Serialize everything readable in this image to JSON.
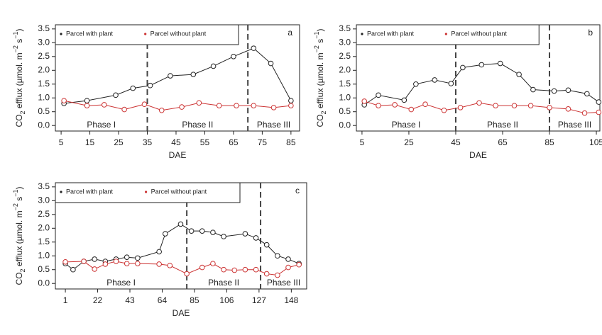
{
  "chart_data": [
    {
      "type": "line",
      "panel": "a",
      "x_label": "DAE",
      "y_label_parts": [
        "CO",
        "2",
        " efflux (µmol. m",
        "−2",
        " s",
        "−1",
        ")"
      ],
      "xlim": [
        3,
        88
      ],
      "xticks": [
        5,
        15,
        25,
        35,
        45,
        55,
        65,
        75,
        85
      ],
      "ylim": [
        -0.2,
        3.65
      ],
      "yticks": [
        {
          "value": 0,
          "label": "0.0"
        },
        0.5,
        {
          "value": 1,
          "label": "1.0"
        },
        1.5,
        {
          "value": 2,
          "label": "2.0"
        },
        2.5,
        {
          "value": 3,
          "label": "3.0"
        },
        3.5
      ],
      "dividers": [
        35,
        70
      ],
      "phases": [
        "Phase I",
        "Phase II",
        "Phase III"
      ],
      "series": [
        {
          "name": "Parcel with plant",
          "color": "#222222",
          "x": [
            6,
            14,
            24,
            30,
            36,
            43,
            51,
            58,
            65,
            72,
            78,
            85
          ],
          "values": [
            0.8,
            0.9,
            1.1,
            1.35,
            1.45,
            1.8,
            1.85,
            2.15,
            2.5,
            2.8,
            2.25,
            0.9
          ]
        },
        {
          "name": "Parcel without plant",
          "color": "#cc3333",
          "x": [
            6,
            14,
            20,
            27,
            34,
            40,
            47,
            53,
            60,
            66,
            72,
            79,
            85
          ],
          "values": [
            0.9,
            0.72,
            0.75,
            0.58,
            0.77,
            0.55,
            0.67,
            0.82,
            0.72,
            0.72,
            0.72,
            0.65,
            0.72
          ]
        }
      ]
    },
    {
      "type": "line",
      "panel": "b",
      "x_label": "DAE",
      "y_label_parts": [
        "CO",
        "2",
        " efflux (µmol. m",
        "−2",
        " s",
        "−1",
        ")"
      ],
      "xlim": [
        2.6,
        106.5
      ],
      "xticks": [
        5,
        25,
        45,
        65,
        85,
        105
      ],
      "ylim": [
        -0.2,
        3.65
      ],
      "yticks": [
        {
          "value": 0,
          "label": "0.0"
        },
        0.5,
        {
          "value": 1,
          "label": "1.0"
        },
        1.5,
        {
          "value": 2,
          "label": "2.0"
        },
        2.5,
        {
          "value": 3,
          "label": "3.0"
        },
        3.5
      ],
      "dividers": [
        45,
        85
      ],
      "phases": [
        "Phase I",
        "Phase II",
        "Phase III"
      ],
      "series": [
        {
          "name": "Parcel with plant",
          "color": "#222222",
          "x": [
            6,
            12,
            23,
            28,
            36,
            43,
            48,
            56,
            64,
            72,
            78,
            87,
            93,
            101,
            106
          ],
          "values": [
            0.75,
            1.1,
            0.92,
            1.5,
            1.65,
            1.52,
            2.1,
            2.2,
            2.25,
            1.85,
            1.3,
            1.25,
            1.28,
            1.15,
            0.85
          ]
        },
        {
          "name": "Parcel without plant",
          "color": "#cc3333",
          "x": [
            6,
            12,
            19,
            26,
            32,
            40,
            47,
            55,
            62,
            70,
            77,
            85,
            93,
            100,
            106
          ],
          "values": [
            0.88,
            0.72,
            0.75,
            0.58,
            0.77,
            0.55,
            0.65,
            0.82,
            0.72,
            0.72,
            0.72,
            0.65,
            0.6,
            0.45,
            0.48
          ]
        }
      ]
    },
    {
      "type": "line",
      "panel": "c",
      "x_label": "DAE",
      "y_label_parts": [
        "CO",
        "2",
        " efflux (µmol. m",
        "−2",
        " s",
        "−1",
        ")"
      ],
      "xlim": [
        -5.5,
        158
      ],
      "xticks": [
        1,
        22,
        43,
        64,
        85,
        106,
        127,
        148
      ],
      "ylim": [
        -0.2,
        3.65
      ],
      "yticks": [
        {
          "value": 0,
          "label": "0.0"
        },
        0.5,
        {
          "value": 1,
          "label": "1.0"
        },
        1.5,
        {
          "value": 2,
          "label": "2.0"
        },
        2.5,
        {
          "value": 3,
          "label": "3.0"
        },
        3.5
      ],
      "dividers": [
        80,
        128
      ],
      "phases": [
        "Phase I",
        "Phase II",
        "Phase III"
      ],
      "series": [
        {
          "name": "Parcel with plant",
          "color": "#222222",
          "x": [
            1,
            6,
            13,
            20,
            27,
            34,
            41,
            48,
            62,
            66,
            76,
            83,
            90,
            97,
            104,
            118,
            125,
            132,
            139,
            146,
            153
          ],
          "values": [
            0.72,
            0.5,
            0.8,
            0.88,
            0.8,
            0.88,
            0.95,
            0.92,
            1.15,
            1.8,
            2.15,
            1.9,
            1.9,
            1.85,
            1.7,
            1.8,
            1.65,
            1.4,
            1.0,
            0.88,
            0.72
          ]
        },
        {
          "name": "Parcel without plant",
          "color": "#cc3333",
          "x": [
            1,
            13,
            20,
            27,
            34,
            41,
            48,
            62,
            69,
            80,
            90,
            97,
            104,
            111,
            118,
            125,
            132,
            139,
            146,
            153
          ],
          "values": [
            0.78,
            0.8,
            0.52,
            0.7,
            0.8,
            0.72,
            0.72,
            0.7,
            0.65,
            0.35,
            0.58,
            0.72,
            0.5,
            0.48,
            0.5,
            0.5,
            0.35,
            0.3,
            0.58,
            0.68
          ]
        }
      ]
    }
  ]
}
